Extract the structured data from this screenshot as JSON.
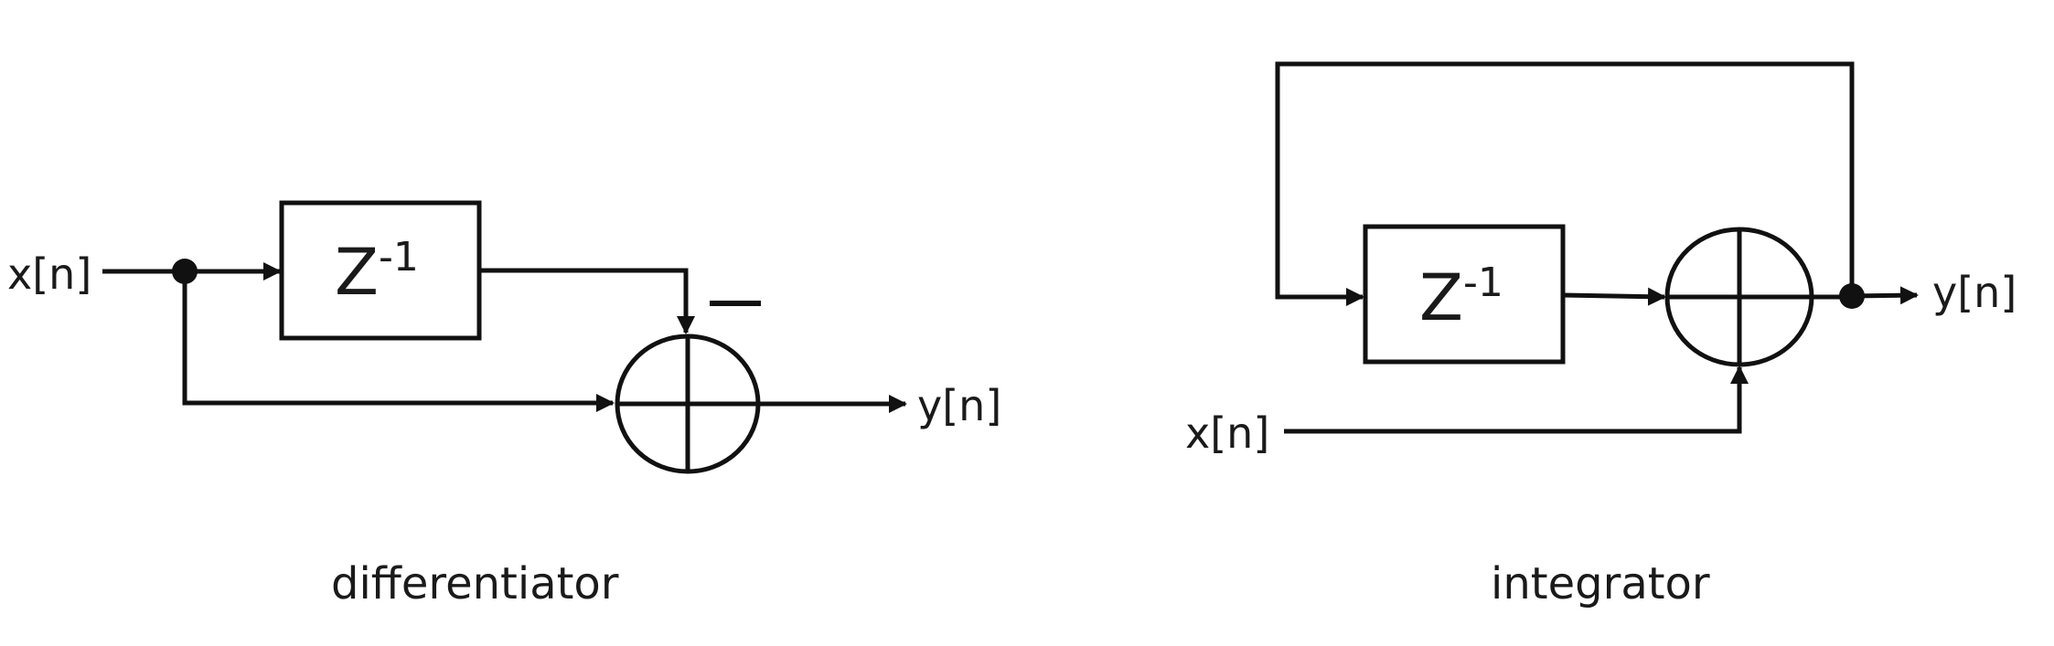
{
  "differentiator": {
    "input_label": "x[n]",
    "output_label": "y[n]",
    "delay_base": "Z",
    "delay_exponent": "-1",
    "minus_sign": "—",
    "caption": "differentiator"
  },
  "integrator": {
    "input_label": "x[n]",
    "output_label": "y[n]",
    "delay_base": "Z",
    "delay_exponent": "-1",
    "caption": "integrator"
  }
}
